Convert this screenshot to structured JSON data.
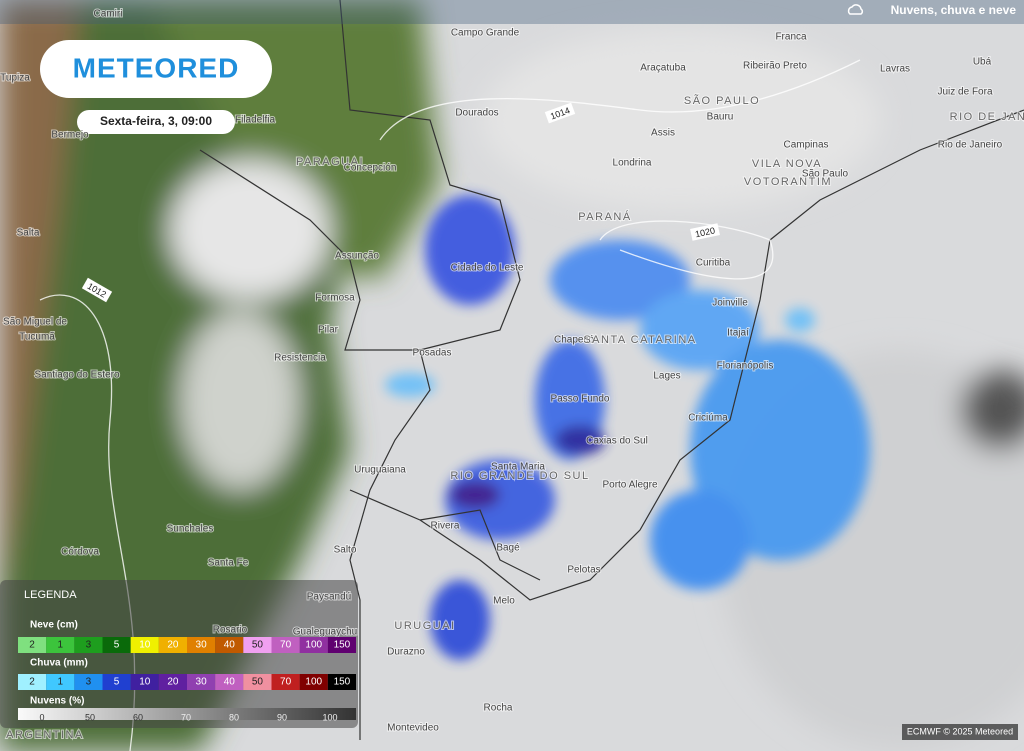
{
  "header": {
    "brand": "METEORED",
    "date": "Sexta-feira, 3, 09:00",
    "layer": "Nuvens, chuva e neve"
  },
  "places": [
    "Camiri",
    "Campo Grande",
    "Franca",
    "Tupiza",
    "Araçatuba",
    "Ribeirão Preto",
    "Lavras",
    "Ubá",
    "Juiz de Fora",
    "SÃO PAULO",
    "Bermejo",
    "Filadelfia",
    "Dourados",
    "Bauru",
    "Assis",
    "Campinas",
    "RIO DE JAN",
    "Rio de Janeiro",
    "PARAGUAI",
    "Concepción",
    "Londrina",
    "VILA NOVA",
    "VOTORANTIM",
    "São Paulo",
    "Salta",
    "PARANÁ",
    "Assunção",
    "Cidade do Leste",
    "Curitiba",
    "Formosa",
    "São Miguel de",
    "Tucumã",
    "Joinville",
    "Pilar",
    "Chapecó",
    "SANTA CATARINA",
    "Itajaí",
    "Resistencia",
    "Posadas",
    "Florianópolis",
    "Santiago do Estero",
    "Lages",
    "Passo Fundo",
    "Criciúma",
    "Caxias do Sul",
    "Uruguaiana",
    "Santa Maria",
    "RIO GRANDE DO SUL",
    "Porto Alegre",
    "Sunchales",
    "Rivera",
    "Córdova",
    "Bagé",
    "Santa Fe",
    "Salto",
    "Pelotas",
    "Paysandú",
    "Melo",
    "Rosario",
    "Gualeguaychu",
    "URUGUAI",
    "Durazno",
    "Rocha",
    "Montevideo",
    "ARGENTINA"
  ],
  "isobars": [
    "1014",
    "1020",
    "1012"
  ],
  "legend": {
    "title": "LEGENDA",
    "snow": {
      "title": "Neve (cm)",
      "labels": [
        "2",
        "1",
        "3",
        "5",
        "10",
        "20",
        "30",
        "40",
        "50",
        "70",
        "100",
        "150"
      ]
    },
    "rain": {
      "title": "Chuva (mm)",
      "labels": [
        "2",
        "1",
        "3",
        "5",
        "10",
        "20",
        "30",
        "40",
        "50",
        "70",
        "100",
        "150"
      ]
    },
    "clouds": {
      "title": "Nuvens (%)",
      "labels": [
        "0",
        "50",
        "60",
        "70",
        "80",
        "90",
        "100"
      ]
    }
  },
  "credit": "ECMWF © 2025 Meteored"
}
